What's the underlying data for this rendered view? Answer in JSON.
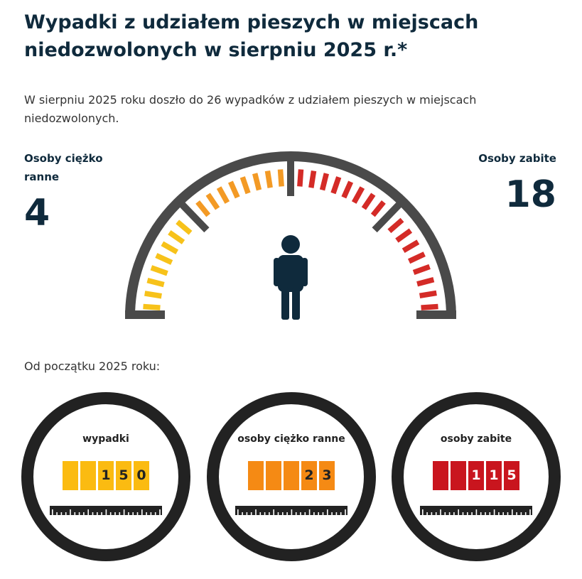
{
  "header": {
    "title": "Wypadki z udziałem pieszych w miejscach niedozwolonych w sierpniu 2025 r.*",
    "intro": "W sierpniu 2025 roku doszło do 26 wypadków z udziałem pieszych w miejscach niedozwolonych."
  },
  "gauge": {
    "injured_label": "Osoby ciężko ranne",
    "injured_value": "4",
    "killed_label": "Osoby zabite",
    "killed_value": "18",
    "center_icon": "person-icon",
    "colors": {
      "frame": "#4a4a4a",
      "yellow": "#f7c21a",
      "orange": "#f39a25",
      "red": "#d42b27",
      "person": "#0f2a3c"
    }
  },
  "since_label": "Od początku 2025 roku:",
  "counters": [
    {
      "label": "wypadki",
      "digits": [
        "",
        "",
        "1",
        "5",
        "0"
      ],
      "color": "#fbbb11"
    },
    {
      "label": "osoby ciężko ranne",
      "digits": [
        "",
        "",
        "",
        "2",
        "3"
      ],
      "color": "#f58a14"
    },
    {
      "label": "osoby zabite",
      "digits": [
        "",
        "",
        "1",
        "1",
        "5"
      ],
      "color": "#c9151e"
    }
  ]
}
